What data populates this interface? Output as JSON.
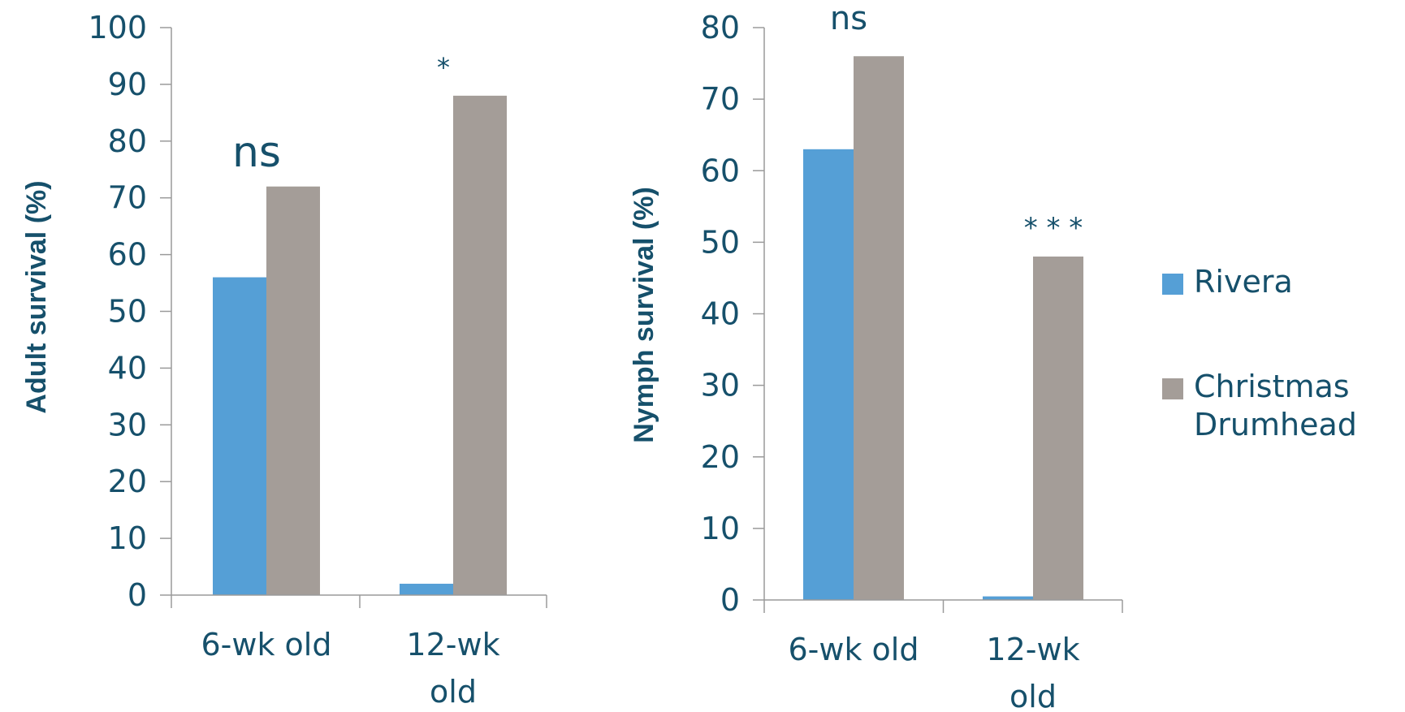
{
  "chart_data": [
    {
      "type": "bar",
      "ylabel": "Adult survival (%)",
      "ylim": [
        0,
        100
      ],
      "yticks": [
        0,
        10,
        20,
        30,
        40,
        50,
        60,
        70,
        80,
        90,
        100
      ],
      "categories": [
        [
          "6-wk old"
        ],
        [
          "12-wk",
          "old"
        ]
      ],
      "series": [
        {
          "name": "Rivera",
          "values": [
            56,
            2
          ]
        },
        {
          "name": "Christmas Drumhead",
          "values": [
            72,
            88
          ]
        }
      ],
      "annotations": [
        "ns",
        "*"
      ]
    },
    {
      "type": "bar",
      "ylabel": "Nymph survival (%)",
      "ylim": [
        0,
        80
      ],
      "yticks": [
        0,
        10,
        20,
        30,
        40,
        50,
        60,
        70,
        80
      ],
      "categories": [
        [
          "6-wk old"
        ],
        [
          "12-wk",
          "old"
        ]
      ],
      "series": [
        {
          "name": "Rivera",
          "values": [
            63,
            0.5
          ]
        },
        {
          "name": "Christmas Drumhead",
          "values": [
            76,
            48
          ]
        }
      ],
      "annotations": [
        "ns",
        "* * *"
      ]
    }
  ],
  "legend": {
    "position": "right",
    "items": [
      {
        "label_lines": [
          "Rivera"
        ],
        "color": "#559fd6"
      },
      {
        "label_lines": [
          "Christmas",
          "Drumhead"
        ],
        "color": "#a49d98"
      }
    ]
  },
  "colors": {
    "rivera": "#559fd6",
    "christmas_drumhead": "#a49d98",
    "text": "#16506b",
    "axis": "#9a9a9a"
  }
}
